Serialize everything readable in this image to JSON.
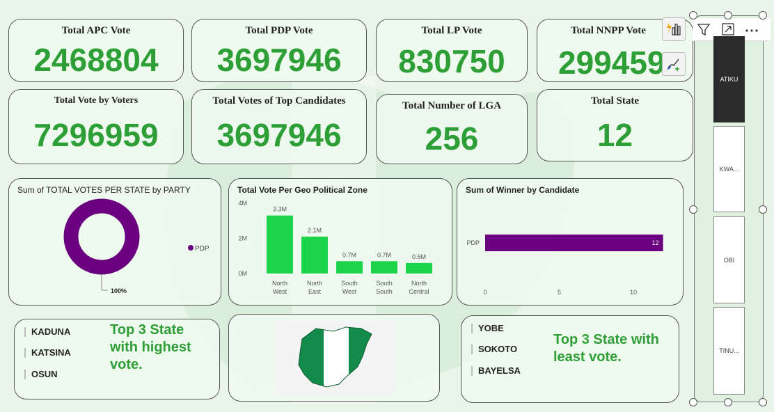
{
  "kpis": {
    "apc": {
      "title": "Total APC Vote",
      "value": "2468804"
    },
    "pdp": {
      "title": "Total PDP Vote",
      "value": "3697946"
    },
    "lp": {
      "title": "Total LP Vote",
      "value": "830750"
    },
    "nnpp": {
      "title": "Total NNPP Vote",
      "value": "299459"
    },
    "voters": {
      "title": "Total Vote by Voters",
      "value": "7296959"
    },
    "top_candidates": {
      "title": "Total Votes of Top Candidates",
      "value": "3697946"
    },
    "lga": {
      "title": "Total Number of LGA",
      "value": "256"
    },
    "state": {
      "title": "Total State",
      "value": "12"
    }
  },
  "donut": {
    "title": "Sum of TOTAL VOTES PER STATE by PARTY",
    "legend": "PDP",
    "label": "100%",
    "color": "#6a0080"
  },
  "zone_chart": {
    "title": "Total Vote Per Geo Political Zone",
    "color": "#1bd44a"
  },
  "winner_chart": {
    "title": "Sum of Winner by Candidate",
    "color": "#6a0080"
  },
  "top3": {
    "items": [
      "KADUNA",
      "KATSINA",
      "OSUN"
    ],
    "note_lines": [
      "Top 3 State",
      "with highest",
      "vote."
    ]
  },
  "least3": {
    "items": [
      "YOBE",
      "SOKOTO",
      "BAYELSA"
    ],
    "note_lines": [
      "Top 3 State with",
      "least vote."
    ]
  },
  "slicer": {
    "items": [
      "ATIKU",
      "KWA...",
      "OBI",
      "TINU..."
    ],
    "selected": "ATIKU"
  },
  "chart_data": [
    {
      "type": "pie",
      "title": "Sum of TOTAL VOTES PER STATE by PARTY",
      "categories": [
        "PDP"
      ],
      "values": [
        100
      ],
      "labels": [
        "100%"
      ]
    },
    {
      "type": "bar",
      "title": "Total Vote Per Geo Political Zone",
      "categories": [
        "North West",
        "North East",
        "South West",
        "South South",
        "North Central"
      ],
      "category_lines": [
        [
          "North",
          "West"
        ],
        [
          "North",
          "East"
        ],
        [
          "South",
          "West"
        ],
        [
          "South",
          "South"
        ],
        [
          "North",
          "Central"
        ]
      ],
      "values": [
        3300000,
        2100000,
        700000,
        700000,
        600000
      ],
      "data_labels": [
        "3.3M",
        "2.1M",
        "0.7M",
        "0.7M",
        "0.6M"
      ],
      "yticks": [
        {
          "v": 0,
          "label": "0M"
        },
        {
          "v": 2000000,
          "label": "2M"
        },
        {
          "v": 4000000,
          "label": "4M"
        }
      ],
      "ylim": [
        0,
        4000000
      ]
    },
    {
      "type": "bar",
      "orientation": "horizontal",
      "title": "Sum of Winner by Candidate",
      "categories": [
        "PDP"
      ],
      "values": [
        12
      ],
      "data_labels": [
        "12"
      ],
      "xticks": [
        {
          "v": 0,
          "label": "0"
        },
        {
          "v": 5,
          "label": "5"
        },
        {
          "v": 10,
          "label": "10"
        }
      ],
      "xlim": [
        0,
        10.8
      ]
    }
  ]
}
